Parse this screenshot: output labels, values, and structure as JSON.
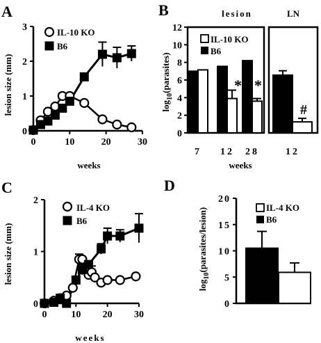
{
  "panels": {
    "A": "A",
    "B": "B",
    "C": "C",
    "D": "D"
  },
  "chart_data": [
    {
      "panel": "A",
      "type": "line",
      "xlabel": "weeks",
      "ylabel": "lesion size (mm)",
      "xlim": [
        0,
        30
      ],
      "ylim": [
        0,
        3
      ],
      "xticks": [
        "0",
        "10",
        "20",
        "30"
      ],
      "yticks": [
        "0",
        "1",
        "2",
        "3"
      ],
      "legend": "top-left",
      "series": [
        {
          "name": "IL-10 KO",
          "marker": "open-circle",
          "x": [
            0,
            2,
            4,
            6,
            8,
            10,
            14,
            19,
            23,
            27
          ],
          "y": [
            0.02,
            0.3,
            0.55,
            0.7,
            1.0,
            1.0,
            0.8,
            0.33,
            0.18,
            0.1
          ],
          "err": [
            0,
            0,
            0,
            0,
            0.08,
            0.08,
            0,
            0,
            0,
            0
          ]
        },
        {
          "name": "B6",
          "marker": "filled-square",
          "x": [
            0,
            2,
            4,
            6,
            8,
            10,
            14,
            19,
            23,
            27
          ],
          "y": [
            0.02,
            0.18,
            0.28,
            0.45,
            0.65,
            0.85,
            1.55,
            2.2,
            2.1,
            2.22
          ],
          "err": [
            0,
            0,
            0,
            0,
            0,
            0,
            0,
            0.35,
            0.3,
            0.22
          ]
        }
      ]
    },
    {
      "panel": "B",
      "type": "bar",
      "xlabel": "weeks",
      "ylabel": "log10(parasites)",
      "ylim": [
        0,
        12
      ],
      "yticks": [
        "0",
        "2",
        "4",
        "6",
        "8",
        "10",
        "12"
      ],
      "groups": [
        {
          "label": "lesion",
          "categories": [
            "7",
            "12",
            "28"
          ],
          "series": [
            {
              "name": "B6",
              "values": [
                7.0,
                7.55,
                8.2
              ],
              "err": [
                0,
                0,
                0
              ]
            },
            {
              "name": "IL-10 KO",
              "values": [
                7.15,
                3.9,
                3.6
              ],
              "err": [
                0,
                0.95,
                0.3
              ]
            }
          ],
          "annotations": [
            "",
            "*",
            "*"
          ]
        },
        {
          "label": "LN",
          "categories": [
            "12"
          ],
          "series": [
            {
              "name": "B6",
              "values": [
                6.55
              ],
              "err": [
                0.5
              ]
            },
            {
              "name": "IL-10 KO",
              "values": [
                1.25
              ],
              "err": [
                0.4
              ]
            }
          ],
          "annotations": [
            "#"
          ]
        }
      ],
      "legend": "top-left"
    },
    {
      "panel": "C",
      "type": "line",
      "xlabel": "weeks",
      "ylabel": "lesion size (mm)",
      "xlim": [
        0,
        30
      ],
      "ylim": [
        0,
        2
      ],
      "xticks": [
        "0",
        "10",
        "20",
        "30"
      ],
      "yticks": [
        "0",
        "1",
        "2"
      ],
      "legend": "top-left",
      "series": [
        {
          "name": "IL-4 KO",
          "marker": "open-circle",
          "x": [
            0,
            3,
            5,
            7,
            9,
            11,
            12,
            14,
            15,
            16,
            18,
            20,
            24,
            29
          ],
          "y": [
            0.0,
            0.05,
            0.1,
            0.15,
            0.3,
            0.85,
            0.85,
            0.55,
            0.6,
            0.5,
            0.4,
            0.45,
            0.45,
            0.52
          ],
          "err": [
            0,
            0,
            0,
            0,
            0,
            0.1,
            0,
            0,
            0.12,
            0,
            0,
            0,
            0,
            0
          ]
        },
        {
          "name": "B6",
          "marker": "filled-square",
          "x": [
            0,
            3,
            5,
            7,
            10,
            12,
            14,
            18,
            20,
            24,
            30
          ],
          "y": [
            0.0,
            0.02,
            0.1,
            0.0,
            0.45,
            0.65,
            0.75,
            1.05,
            1.3,
            1.3,
            1.45
          ],
          "err": [
            0,
            0,
            0,
            0,
            0,
            0.1,
            0,
            0.1,
            0.15,
            0.12,
            0.28
          ]
        }
      ]
    },
    {
      "panel": "D",
      "type": "bar",
      "xlabel": "",
      "ylabel": "log10(parasites/lesion)",
      "ylim": [
        0,
        20
      ],
      "yticks": [
        "0",
        "5",
        "10",
        "15",
        "20"
      ],
      "categories": [
        ""
      ],
      "series": [
        {
          "name": "B6",
          "values": [
            10.5
          ],
          "err": [
            3.2
          ]
        },
        {
          "name": "IL-4 KO",
          "values": [
            5.9
          ],
          "err": [
            1.8
          ]
        }
      ],
      "legend": "top"
    }
  ],
  "texts": {
    "A_ylabel": "lesion size (mm)",
    "A_xlabel": "weeks",
    "A_leg1": "IL-10 KO",
    "A_leg2": "B6",
    "B_ylabel_main": "log",
    "B_ylabel_sub": "10",
    "B_ylabel_rest": "(parasites)",
    "B_xlabel": "weeks",
    "B_group1": "lesion",
    "B_group2": "LN",
    "B_leg1": "IL-10 KO",
    "B_leg2": "B6",
    "B_star1": "*",
    "B_star2": "*",
    "B_hash": "#",
    "C_ylabel": "lesion size (mm)",
    "C_xlabel": "weeks",
    "C_leg1": "IL-4 KO",
    "C_leg2": "B6",
    "D_ylabel_main": "log",
    "D_ylabel_sub": "10",
    "D_ylabel_rest": "(parasites/lesion)",
    "D_leg1": "IL-4 KO",
    "D_leg2": "B6"
  },
  "colors": {
    "ink": "#000000",
    "paper": "#ffffff"
  }
}
